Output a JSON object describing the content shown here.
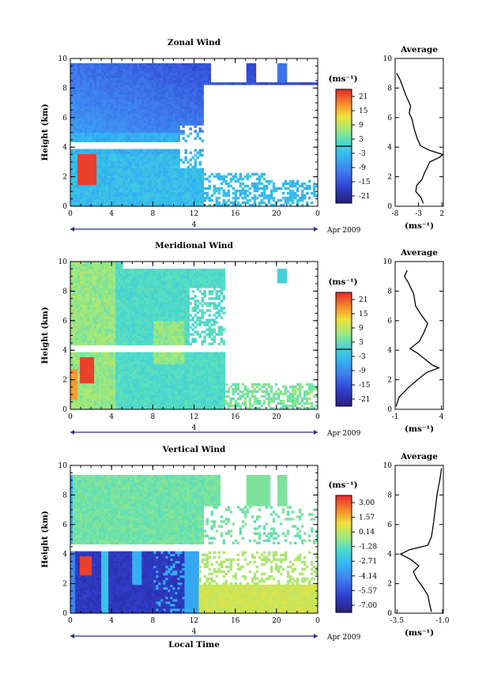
{
  "chart_data": [
    {
      "type": "heatmap",
      "title": "Zonal Wind",
      "ylabel": "Height (km)",
      "ylim": [
        0,
        10
      ],
      "y_ticks": [
        "0",
        "2",
        "4",
        "6",
        "8",
        "10"
      ],
      "xlim": [
        0,
        24
      ],
      "x_ticks": [
        "0",
        "4",
        "8",
        "12",
        "16",
        "20",
        "0"
      ],
      "x_bar_label": "4",
      "date_label": "Apr 2009",
      "colorbar": {
        "unit": "(ms⁻¹)",
        "tick_labels": [
          "21",
          "15",
          "9",
          "3",
          "-3",
          "-9",
          "-15",
          "-21"
        ],
        "range": [
          -24,
          24
        ],
        "contour_marker": 0
      },
      "profile": {
        "title": "Average",
        "xlabel": "(ms⁻¹)",
        "x_ticks": [
          "-8",
          "-3",
          "2"
        ],
        "xlim": [
          -8,
          2.3
        ],
        "y_ticks": [
          "0",
          "2",
          "4",
          "6",
          "8",
          "10"
        ],
        "points": [
          [
            -2.0,
            0.2
          ],
          [
            -2.5,
            0.6
          ],
          [
            -3.6,
            1.0
          ],
          [
            -3.4,
            1.4
          ],
          [
            -2.3,
            1.8
          ],
          [
            -1.8,
            2.2
          ],
          [
            -1.2,
            2.6
          ],
          [
            -0.6,
            3.0
          ],
          [
            1.4,
            3.3
          ],
          [
            2.2,
            3.5
          ],
          [
            -0.8,
            3.8
          ],
          [
            -2.6,
            4.1
          ],
          [
            -3.3,
            4.6
          ],
          [
            -3.9,
            5.2
          ],
          [
            -4.4,
            5.9
          ],
          [
            -5.0,
            6.3
          ],
          [
            -4.7,
            6.8
          ],
          [
            -5.7,
            7.5
          ],
          [
            -6.4,
            8.1
          ],
          [
            -7.0,
            8.6
          ],
          [
            -7.7,
            9.0
          ]
        ]
      }
    },
    {
      "type": "heatmap",
      "title": "Meridional Wind",
      "ylabel": "Height (km)",
      "ylim": [
        0,
        10
      ],
      "y_ticks": [
        "0",
        "2",
        "4",
        "6",
        "8",
        "10"
      ],
      "xlim": [
        0,
        24
      ],
      "x_ticks": [
        "0",
        "4",
        "8",
        "12",
        "16",
        "20",
        "0"
      ],
      "x_bar_label": "4",
      "date_label": "Apr 2009",
      "colorbar": {
        "unit": "(ms⁻¹)",
        "tick_labels": [
          "21",
          "15",
          "9",
          "3",
          "-3",
          "-9",
          "-15",
          "-21"
        ],
        "range": [
          -24,
          24
        ],
        "contour_marker": 0
      },
      "profile": {
        "title": "Average",
        "xlabel": "(ms⁻¹)",
        "x_ticks": [
          "-1",
          "4"
        ],
        "xlim": [
          -1,
          4.2
        ],
        "y_ticks": [
          "0",
          "2",
          "4",
          "6",
          "8",
          "10"
        ],
        "points": [
          [
            -0.9,
            0.2
          ],
          [
            -0.6,
            0.8
          ],
          [
            0.3,
            1.4
          ],
          [
            1.4,
            2.0
          ],
          [
            2.4,
            2.5
          ],
          [
            3.7,
            2.8
          ],
          [
            3.0,
            3.0
          ],
          [
            2.2,
            3.4
          ],
          [
            1.4,
            3.8
          ],
          [
            0.6,
            4.1
          ],
          [
            1.6,
            4.6
          ],
          [
            2.1,
            5.2
          ],
          [
            2.5,
            5.8
          ],
          [
            1.8,
            6.4
          ],
          [
            1.2,
            7.0
          ],
          [
            1.0,
            7.8
          ],
          [
            0.4,
            8.6
          ],
          [
            0.0,
            9.0
          ],
          [
            0.3,
            9.4
          ]
        ]
      }
    },
    {
      "type": "heatmap",
      "title": "Vertical Wind",
      "ylabel": "Height (km)",
      "xlabel": "Local Time",
      "ylim": [
        0,
        10
      ],
      "y_ticks": [
        "0",
        "2",
        "4",
        "6",
        "8",
        "10"
      ],
      "xlim": [
        0,
        24
      ],
      "x_ticks": [
        "0",
        "4",
        "8",
        "12",
        "16",
        "20",
        "0"
      ],
      "x_bar_label": "4",
      "date_label": "Apr 2009",
      "colorbar": {
        "unit": "(ms⁻¹)",
        "tick_labels": [
          "3.00",
          "1.57",
          "0.14",
          "-1.28",
          "-2.71",
          "-4.14",
          "-5.57",
          "-7.00"
        ],
        "range": [
          -7.7,
          3.7
        ]
      },
      "profile": {
        "title": "Average",
        "xlabel": "(ms⁻¹)",
        "x_ticks": [
          "-3.5",
          "-1.0"
        ],
        "xlim": [
          -3.6,
          -0.95
        ],
        "y_ticks": [
          "0",
          "2",
          "4",
          "6",
          "8",
          "10"
        ],
        "points": [
          [
            -1.6,
            0.1
          ],
          [
            -1.7,
            0.6
          ],
          [
            -1.8,
            1.2
          ],
          [
            -2.1,
            1.8
          ],
          [
            -2.4,
            2.3
          ],
          [
            -2.6,
            2.8
          ],
          [
            -2.3,
            3.2
          ],
          [
            -2.7,
            3.6
          ],
          [
            -3.3,
            4.0
          ],
          [
            -2.8,
            4.3
          ],
          [
            -1.8,
            4.6
          ],
          [
            -1.6,
            5.2
          ],
          [
            -1.5,
            6.0
          ],
          [
            -1.4,
            7.0
          ],
          [
            -1.3,
            8.0
          ],
          [
            -1.15,
            9.0
          ],
          [
            -1.05,
            9.8
          ]
        ]
      }
    }
  ]
}
